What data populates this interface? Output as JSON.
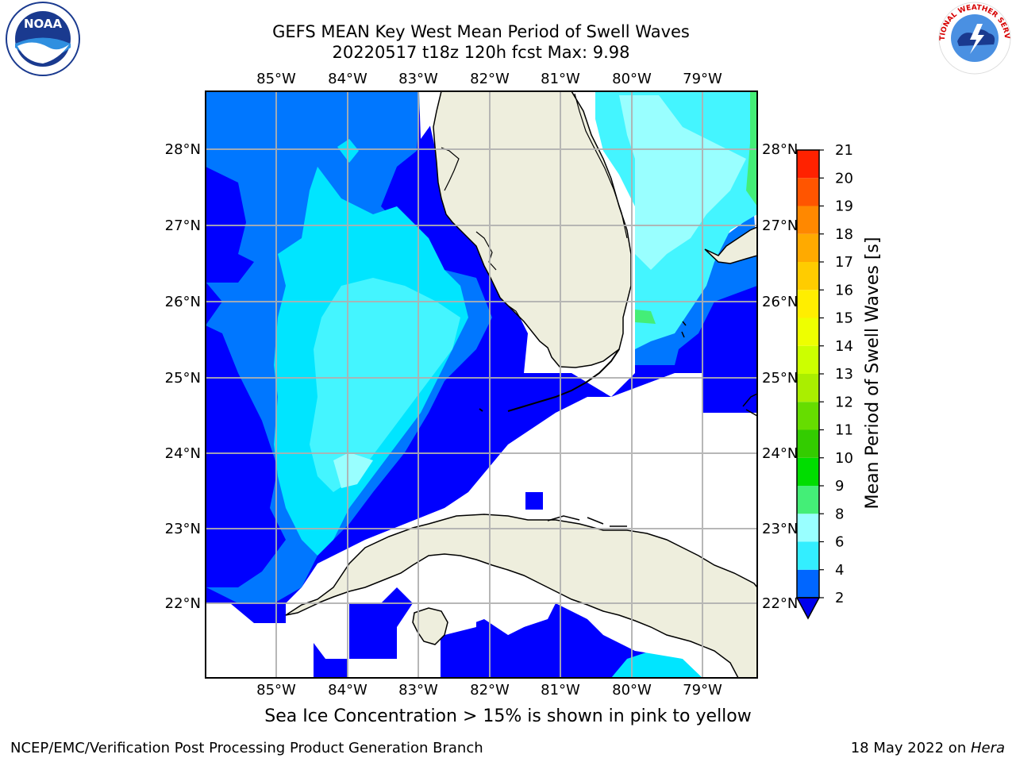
{
  "title": {
    "line1": "GEFS MEAN Key West Mean Period of Swell Waves",
    "line2": "20220517 t18z 120h fcst   Max: 9.98"
  },
  "logos": {
    "left_text": "NOAA",
    "right_text": "NATIONAL WEATHER SERVICE"
  },
  "map": {
    "lon_labels": [
      "85°W",
      "84°W",
      "83°W",
      "82°W",
      "81°W",
      "80°W",
      "79°W"
    ],
    "lat_labels": [
      "28°N",
      "27°N",
      "26°N",
      "25°N",
      "24°N",
      "23°N",
      "22°N"
    ],
    "colors": {
      "land": "#eeeedd",
      "ocean_dark": "#0000ff",
      "ocean_mid": "#0077ff",
      "ocean_cyan": "#00e5ff",
      "ocean_lightcyan": "#44f5ff",
      "ocean_pale": "#99ffff",
      "grid": "#b0b0b0"
    }
  },
  "colorbar": {
    "label": "Mean Period of Swell Waves [s]",
    "ticks": [
      "2",
      "4",
      "6",
      "8",
      "9",
      "10",
      "11",
      "12",
      "13",
      "14",
      "15",
      "16",
      "17",
      "18",
      "19",
      "20",
      "21"
    ],
    "colors": [
      "#0066ff",
      "#00ccff",
      "#33eeff",
      "#99ffff",
      "#44ee77",
      "#00dd00",
      "#33cc00",
      "#66dd00",
      "#aaee00",
      "#ccff00",
      "#eeff00",
      "#ffee00",
      "#ffcc00",
      "#ffaa00",
      "#ff8800",
      "#ff5500",
      "#ff2200",
      "#ff0000"
    ]
  },
  "subnote": "Sea Ice Concentration > 15% is shown in pink to yellow",
  "footer": {
    "left": "NCEP/EMC/Verification Post Processing Product Generation Branch",
    "right_prefix": "18 May 2022 on ",
    "right_italic": "Hera"
  }
}
